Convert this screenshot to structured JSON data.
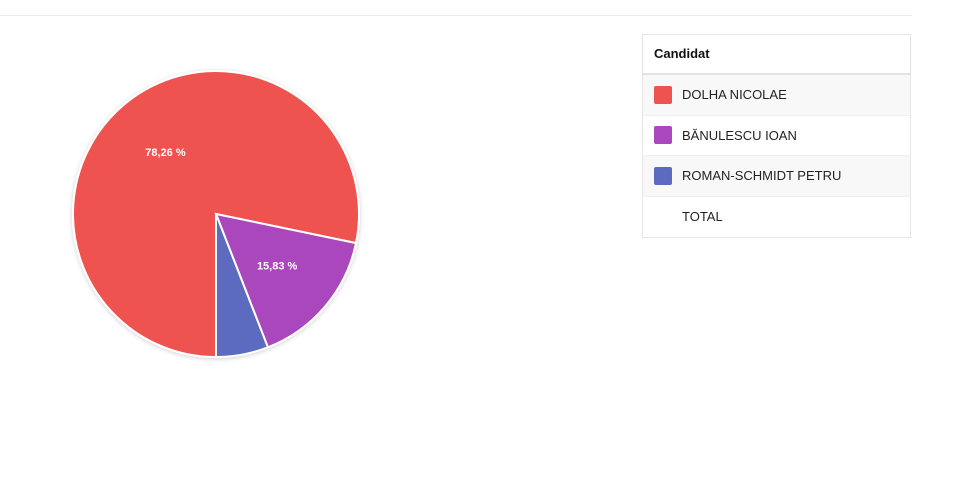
{
  "chart_data": {
    "type": "pie",
    "series": [
      {
        "name": "DOLHA NICOLAE",
        "value": 78.26,
        "label": "78,26 %",
        "color": "#ef5350"
      },
      {
        "name": "BĂNULESCU IOAN",
        "value": 15.83,
        "label": "15,83 %",
        "color": "#ab47bc"
      },
      {
        "name": "ROMAN-SCHMIDT PETRU",
        "value": 5.91,
        "label": "",
        "color": "#5c6bc0"
      }
    ]
  },
  "legend": {
    "header": "Candidat",
    "rows": [
      {
        "label": "DOLHA NICOLAE",
        "color": "#ef5350"
      },
      {
        "label": "BĂNULESCU IOAN",
        "color": "#ab47bc"
      },
      {
        "label": "ROMAN-SCHMIDT PETRU",
        "color": "#5c6bc0"
      },
      {
        "label": "TOTAL",
        "color": ""
      }
    ]
  }
}
